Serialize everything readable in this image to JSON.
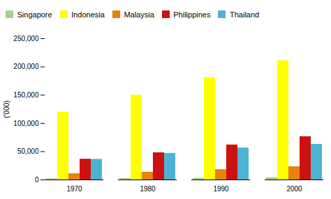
{
  "chart_data": {
    "type": "bar",
    "categories": [
      "1970",
      "1980",
      "1990",
      "2000"
    ],
    "series": [
      {
        "name": "Singapore",
        "color": "#a8d08d",
        "values": [
          2075,
          2414,
          3047,
          4028
        ]
      },
      {
        "name": "Indonesia",
        "color": "#ffff00",
        "values": [
          120000,
          150000,
          181000,
          211000
        ]
      },
      {
        "name": "Malaysia",
        "color": "#e8820a",
        "values": [
          10900,
          13760,
          18200,
          23270
        ]
      },
      {
        "name": "Philippines",
        "color": "#cc1111",
        "values": [
          36700,
          48100,
          61900,
          76500
        ]
      },
      {
        "name": "Thailand",
        "color": "#4db3d4",
        "values": [
          36400,
          47000,
          56500,
          63000
        ]
      }
    ],
    "ylabel": "('000)",
    "ylim": [
      0,
      250000
    ],
    "yticks": [
      0,
      {
        "value": 50000,
        "label": "50,000"
      },
      {
        "value": 100000,
        "label": "100,000"
      },
      {
        "value": 150000,
        "label": "150,000"
      },
      {
        "value": 200000,
        "label": "200,000"
      },
      {
        "value": 250000,
        "label": "250,000"
      }
    ],
    "grid": false,
    "legend": "upper left"
  }
}
